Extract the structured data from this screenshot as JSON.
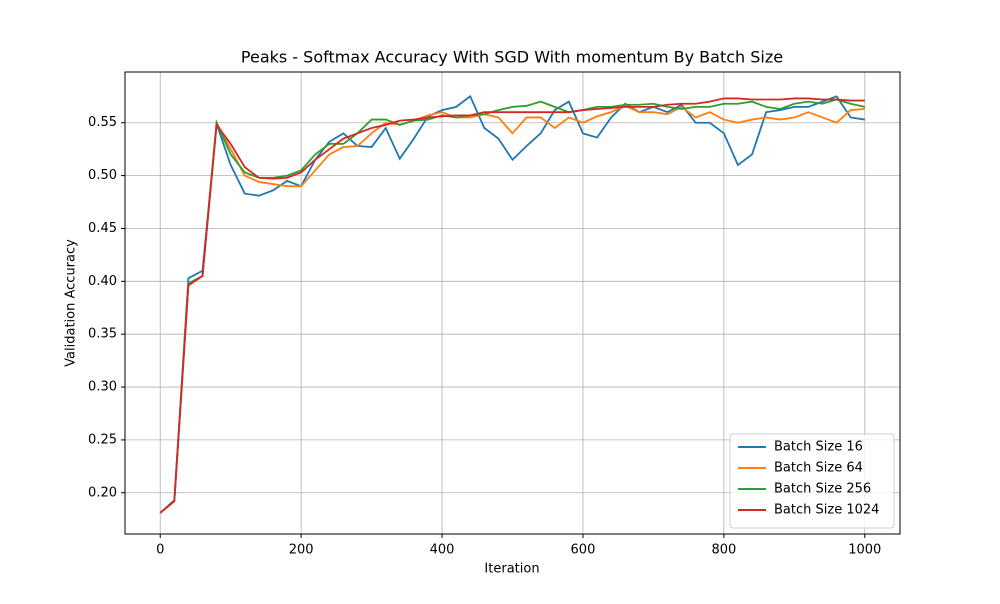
{
  "chart_data": {
    "type": "line",
    "title": "Peaks - Softmax Accuracy With SGD With momentum By Batch Size",
    "x_label": "Iteration",
    "y_label": "Validation Accuracy",
    "x": [
      0,
      20,
      40,
      60,
      80,
      100,
      120,
      140,
      160,
      180,
      200,
      220,
      240,
      260,
      280,
      300,
      320,
      340,
      360,
      380,
      400,
      420,
      440,
      460,
      480,
      500,
      520,
      540,
      560,
      580,
      600,
      620,
      640,
      660,
      680,
      700,
      720,
      740,
      760,
      780,
      800,
      820,
      840,
      860,
      880,
      900,
      920,
      940,
      960,
      980,
      1000
    ],
    "series": [
      {
        "name": "Batch Size 16",
        "color": "#1f77b4",
        "values": [
          0.181,
          0.193,
          0.403,
          0.41,
          0.549,
          0.51,
          0.483,
          0.481,
          0.486,
          0.495,
          0.49,
          0.515,
          0.532,
          0.54,
          0.528,
          0.527,
          0.545,
          0.516,
          0.535,
          0.556,
          0.562,
          0.565,
          0.575,
          0.545,
          0.535,
          0.515,
          0.528,
          0.54,
          0.562,
          0.57,
          0.54,
          0.536,
          0.555,
          0.568,
          0.56,
          0.565,
          0.56,
          0.567,
          0.55,
          0.55,
          0.54,
          0.51,
          0.52,
          0.56,
          0.562,
          0.565,
          0.565,
          0.57,
          0.575,
          0.555,
          0.553
        ]
      },
      {
        "name": "Batch Size 64",
        "color": "#ff7f0e",
        "values": [
          0.181,
          0.192,
          0.398,
          0.405,
          0.55,
          0.525,
          0.5,
          0.494,
          0.492,
          0.49,
          0.49,
          0.505,
          0.52,
          0.527,
          0.528,
          0.54,
          0.55,
          0.548,
          0.552,
          0.557,
          0.56,
          0.555,
          0.555,
          0.558,
          0.555,
          0.54,
          0.555,
          0.555,
          0.545,
          0.555,
          0.55,
          0.556,
          0.56,
          0.566,
          0.56,
          0.56,
          0.558,
          0.565,
          0.555,
          0.56,
          0.553,
          0.55,
          0.553,
          0.555,
          0.553,
          0.555,
          0.56,
          0.555,
          0.55,
          0.562,
          0.563
        ]
      },
      {
        "name": "Batch Size 256",
        "color": "#2ca02c",
        "values": [
          0.181,
          0.192,
          0.398,
          0.405,
          0.55,
          0.52,
          0.503,
          0.498,
          0.498,
          0.5,
          0.505,
          0.52,
          0.53,
          0.53,
          0.54,
          0.553,
          0.553,
          0.548,
          0.552,
          0.553,
          0.557,
          0.555,
          0.557,
          0.558,
          0.562,
          0.565,
          0.566,
          0.57,
          0.565,
          0.56,
          0.562,
          0.565,
          0.565,
          0.567,
          0.567,
          0.568,
          0.565,
          0.563,
          0.565,
          0.565,
          0.568,
          0.568,
          0.57,
          0.565,
          0.563,
          0.568,
          0.57,
          0.568,
          0.572,
          0.568,
          0.565
        ]
      },
      {
        "name": "Batch Size 1024",
        "color": "#d62728",
        "values": [
          0.181,
          0.192,
          0.396,
          0.405,
          0.548,
          0.53,
          0.508,
          0.498,
          0.497,
          0.498,
          0.503,
          0.515,
          0.525,
          0.535,
          0.54,
          0.545,
          0.548,
          0.552,
          0.553,
          0.555,
          0.556,
          0.557,
          0.557,
          0.56,
          0.56,
          0.56,
          0.56,
          0.56,
          0.56,
          0.56,
          0.562,
          0.563,
          0.564,
          0.565,
          0.565,
          0.565,
          0.567,
          0.568,
          0.568,
          0.57,
          0.573,
          0.573,
          0.572,
          0.572,
          0.572,
          0.573,
          0.573,
          0.572,
          0.572,
          0.571,
          0.571
        ]
      }
    ],
    "xlim": [
      -50,
      1050
    ],
    "ylim": [
      0.161,
      0.598
    ],
    "xticks": [
      0,
      200,
      400,
      600,
      800,
      1000
    ],
    "yticks": [
      {
        "value": 0.2,
        "label": "0.20"
      },
      0.25,
      {
        "value": 0.3,
        "label": "0.30"
      },
      0.35,
      {
        "value": 0.4,
        "label": "0.40"
      },
      0.45,
      {
        "value": 0.5,
        "label": "0.50"
      },
      0.55
    ],
    "grid": true,
    "legend": "lower right"
  }
}
